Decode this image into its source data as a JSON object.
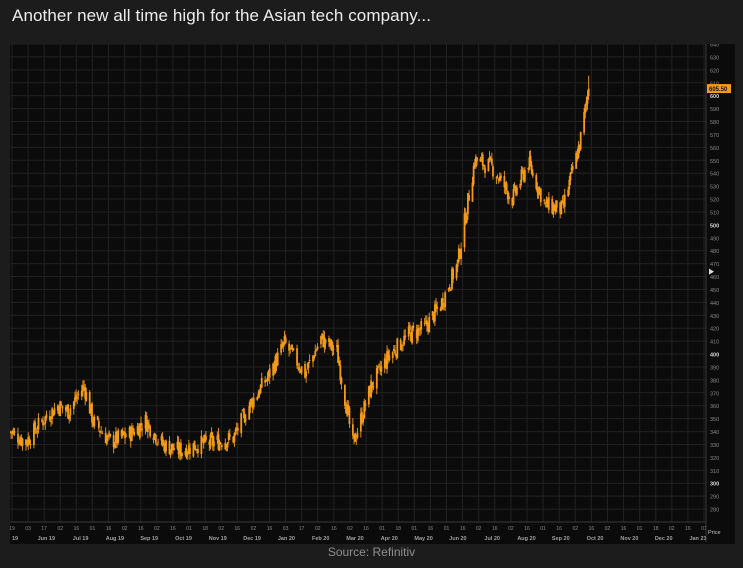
{
  "headline": "Another new all time high for the Asian tech company...",
  "source": "Source: Refinitiv",
  "colors": {
    "background": "#1c1c1c",
    "plot_bg": "#0b0b0b",
    "candle": "#f29a1a",
    "grid": "#222222",
    "axis_text": "#8a8a8a",
    "last_price_badge": "#f29a1a"
  },
  "chart_data": {
    "type": "candlestick",
    "title": "",
    "xlabel": "",
    "ylabel": "",
    "ylim": [
      270,
      640
    ],
    "grid": true,
    "y_ticks": [
      280,
      290,
      300,
      310,
      320,
      330,
      340,
      350,
      360,
      370,
      380,
      390,
      400,
      410,
      420,
      430,
      440,
      450,
      460,
      470,
      480,
      490,
      500,
      510,
      520,
      530,
      540,
      550,
      560,
      570,
      580,
      590,
      600,
      610,
      620,
      630,
      640
    ],
    "y_ticks_bold": [
      300,
      400,
      500,
      600
    ],
    "last_price_label": "605.50",
    "last_price": 605.5,
    "axis_unit_label": "Price",
    "x_tick_days": [
      "19",
      "03",
      "17",
      "02",
      "16",
      "01",
      "16",
      "02",
      "16",
      "02",
      "16",
      "01",
      "18",
      "02",
      "16",
      "02",
      "16",
      "03",
      "17",
      "02",
      "16",
      "02",
      "16",
      "01",
      "18",
      "01",
      "16",
      "01",
      "16",
      "02",
      "16",
      "02",
      "16",
      "01",
      "16",
      "02",
      "16",
      "02",
      "16",
      "01",
      "18",
      "02",
      "16",
      "01"
    ],
    "x_month_labels": [
      "19",
      "Jun 19",
      "Jul 19",
      "Aug 19",
      "Sep 19",
      "Oct 19",
      "Nov 19",
      "Dec 19",
      "Jan 20",
      "Feb 20",
      "Mar 20",
      "Apr 20",
      "May 20",
      "Jun 20",
      "Jul 20",
      "Aug 20",
      "Sep 20",
      "Oct 20",
      "Nov 20",
      "Dec 20",
      "Jan 21"
    ],
    "price_path": [
      [
        "2019-05-20",
        340
      ],
      [
        "2019-06-03",
        332
      ],
      [
        "2019-06-17",
        348
      ],
      [
        "2019-07-01",
        360
      ],
      [
        "2019-07-10",
        356
      ],
      [
        "2019-07-24",
        375
      ],
      [
        "2019-08-01",
        348
      ],
      [
        "2019-08-16",
        332
      ],
      [
        "2019-09-02",
        338
      ],
      [
        "2019-09-16",
        348
      ],
      [
        "2019-10-01",
        330
      ],
      [
        "2019-10-16",
        325
      ],
      [
        "2019-11-01",
        330
      ],
      [
        "2019-11-18",
        332
      ],
      [
        "2019-12-02",
        335
      ],
      [
        "2019-12-16",
        360
      ],
      [
        "2020-01-02",
        383
      ],
      [
        "2020-01-16",
        408
      ],
      [
        "2020-02-03",
        385
      ],
      [
        "2020-02-17",
        412
      ],
      [
        "2020-03-02",
        402
      ],
      [
        "2020-03-16",
        330
      ],
      [
        "2020-04-01",
        375
      ],
      [
        "2020-04-16",
        398
      ],
      [
        "2020-05-04",
        415
      ],
      [
        "2020-05-18",
        420
      ],
      [
        "2020-06-01",
        438
      ],
      [
        "2020-06-16",
        470
      ],
      [
        "2020-07-01",
        550
      ],
      [
        "2020-07-16",
        545
      ],
      [
        "2020-08-03",
        520
      ],
      [
        "2020-08-17",
        548
      ],
      [
        "2020-09-01",
        515
      ],
      [
        "2020-09-16",
        512
      ],
      [
        "2020-10-01",
        562
      ],
      [
        "2020-10-09",
        605.5
      ]
    ],
    "x_range": [
      "2019-05-20",
      "2021-01-20"
    ]
  }
}
